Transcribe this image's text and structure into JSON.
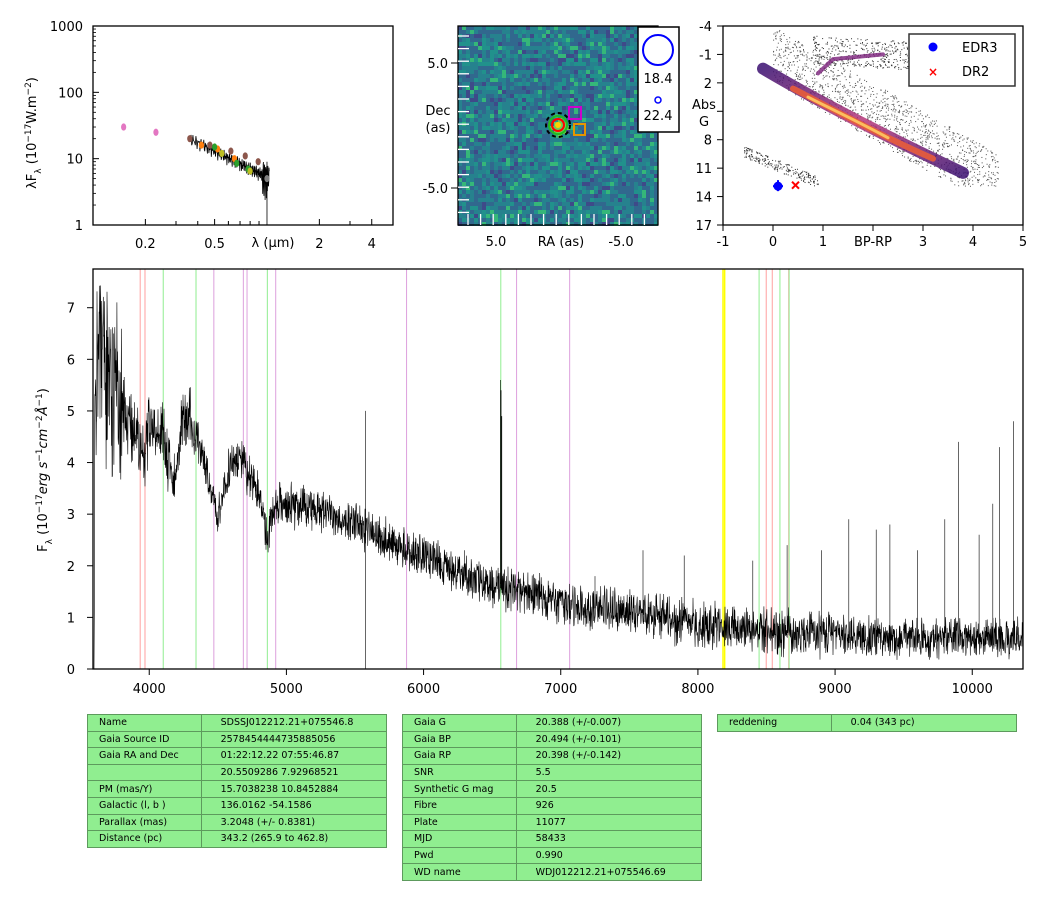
{
  "chart_data": [
    {
      "type": "scatter",
      "panel": "sed",
      "ylabel_html": "λF<sub>λ</sub> (10<sup>−17</sup>W.m<sup>−2</sup>)",
      "ylabel": "λF_λ (10^-17 W.m^-2)",
      "xlabel": "λ (μm)",
      "xscale": "log",
      "yscale": "log",
      "xlim": [
        0.1,
        5.3
      ],
      "ylim": [
        1,
        1000
      ],
      "xtick_labels": [
        "0.2",
        "0.5",
        "2",
        "4"
      ],
      "ytick_labels": [
        "1",
        "10",
        "100",
        "1000"
      ],
      "series": [
        {
          "color": "#e377c2",
          "x": [
            0.15,
            0.23
          ],
          "y": [
            30,
            25
          ]
        },
        {
          "color": "#8c564b",
          "x": [
            0.36,
            0.47,
            0.62,
            0.75,
            0.89
          ],
          "y": [
            20,
            16,
            13,
            11,
            9
          ]
        },
        {
          "color": "#ff7f0e",
          "x": [
            0.42,
            0.52,
            0.65
          ],
          "y": [
            16,
            14,
            10
          ]
        },
        {
          "color": "#2ca02c",
          "x": [
            0.5,
            0.67,
            0.78
          ],
          "y": [
            15,
            8.5,
            7
          ]
        },
        {
          "color": "#bcbd22",
          "x": [
            0.55,
            0.8
          ],
          "y": [
            12,
            6.5
          ]
        },
        {
          "color": "#7f7f7f",
          "x": [
            1.0
          ],
          "y": [
            5
          ]
        }
      ]
    },
    {
      "type": "heatmap",
      "panel": "image",
      "xlabel": "RA (as)",
      "ylabel": "Dec\n(as)",
      "xtick_labels": [
        "5.0",
        "-5.0"
      ],
      "ytick_labels": [
        "5.0",
        "-5.0"
      ],
      "legend_labels": [
        "18.4",
        "22.4"
      ]
    },
    {
      "type": "scatter",
      "panel": "hr",
      "xlabel": "BP-RP",
      "ylabel": "Abs\nG",
      "xlim": [
        -1,
        5
      ],
      "ylim": [
        17,
        -4
      ],
      "xtick_labels": [
        "-1",
        "0",
        "1",
        "2",
        "3",
        "4",
        "5"
      ],
      "ytick_labels": [
        "-4",
        "-1",
        "2",
        "5",
        "8",
        "11",
        "14",
        "17"
      ],
      "series": [
        {
          "name": "EDR3",
          "color": "#0000ff",
          "x": [
            0.1
          ],
          "y": [
            12.9
          ],
          "marker": "circle"
        },
        {
          "name": "DR2",
          "color": "#ff0000",
          "x": [
            0.45
          ],
          "y": [
            12.8
          ],
          "marker": "x"
        }
      ],
      "legend": "top-right"
    },
    {
      "type": "line",
      "panel": "spectrum",
      "ylabel_html": "F<sub>λ</sub> (10<sup>−17</sup><i>erg s</i><sup>−1</sup><i>cm</i><sup>−2</sup><i>Å</i><sup>−1</sup>)",
      "ylabel": "F_λ (10^-17 erg s^-1 cm^-2 Å^-1)",
      "xlim": [
        3590,
        10370
      ],
      "ylim": [
        0,
        7.75
      ],
      "xtick_labels": [
        "4000",
        "5000",
        "6000",
        "7000",
        "8000",
        "9000",
        "10000"
      ],
      "ytick_labels": [
        "0",
        "1",
        "2",
        "3",
        "4",
        "5",
        "6",
        "7"
      ],
      "continuum_x": [
        3600,
        3650,
        3700,
        3800,
        3900,
        3960,
        4000,
        4100,
        4180,
        4250,
        4350,
        4500,
        4600,
        4700,
        4800,
        4860,
        4920,
        5000,
        5100,
        5300,
        5500,
        5700,
        5900,
        6100,
        6300,
        6500,
        6700,
        7000,
        7300,
        7600,
        8000,
        8500,
        9000,
        9500,
        10000,
        10370
      ],
      "continuum_y": [
        6.2,
        6.1,
        5.6,
        5.1,
        4.6,
        4.1,
        4.8,
        4.6,
        3.6,
        5.0,
        4.5,
        3.0,
        4.1,
        3.9,
        3.4,
        2.6,
        3.2,
        3.15,
        3.15,
        3.0,
        2.8,
        2.55,
        2.3,
        2.05,
        1.8,
        1.6,
        1.5,
        1.3,
        1.15,
        1.05,
        0.85,
        0.75,
        0.65,
        0.6,
        0.6,
        0.6
      ],
      "spikes": [
        {
          "x": 5577,
          "y": 5.0
        },
        {
          "x": 5890,
          "y": 2.4
        },
        {
          "x": 6300,
          "y": 2.3
        },
        {
          "x": 6560,
          "y": 5.6
        },
        {
          "x": 6565,
          "y": 5.4
        },
        {
          "x": 6570,
          "y": 4.9
        },
        {
          "x": 7250,
          "y": 1.8
        },
        {
          "x": 7600,
          "y": 2.3
        },
        {
          "x": 7900,
          "y": 2.2
        },
        {
          "x": 8400,
          "y": 2.1
        },
        {
          "x": 8650,
          "y": 2.4
        },
        {
          "x": 8900,
          "y": 2.3
        },
        {
          "x": 9100,
          "y": 2.9
        },
        {
          "x": 9300,
          "y": 2.7
        },
        {
          "x": 9400,
          "y": 2.8
        },
        {
          "x": 9600,
          "y": 2.3
        },
        {
          "x": 9800,
          "y": 2.9
        },
        {
          "x": 9900,
          "y": 4.4
        },
        {
          "x": 10050,
          "y": 2.6
        },
        {
          "x": 10150,
          "y": 3.2
        },
        {
          "x": 10200,
          "y": 4.3
        },
        {
          "x": 10300,
          "y": 4.8
        }
      ],
      "lines": [
        {
          "color": "#ffa0a0",
          "x": 3934
        },
        {
          "color": "#ffa0a0",
          "x": 3969
        },
        {
          "color": "#90ee90",
          "x": 4102
        },
        {
          "color": "#90ee90",
          "x": 4341
        },
        {
          "color": "#dda0dd",
          "x": 4471
        },
        {
          "color": "#dda0dd",
          "x": 4686
        },
        {
          "color": "#dda0dd",
          "x": 4713
        },
        {
          "color": "#90ee90",
          "x": 4861
        },
        {
          "color": "#dda0dd",
          "x": 4922
        },
        {
          "color": "#dda0dd",
          "x": 5876
        },
        {
          "color": "#90ee90",
          "x": 6563
        },
        {
          "color": "#dda0dd",
          "x": 6678
        },
        {
          "color": "#dda0dd",
          "x": 7065
        },
        {
          "color": "#ffff00",
          "x": 8183
        },
        {
          "color": "#ffff00",
          "x": 8195
        },
        {
          "color": "#90ee90",
          "x": 8446
        },
        {
          "color": "#ffa0a0",
          "x": 8498
        },
        {
          "color": "#ffa0a0",
          "x": 8542
        },
        {
          "color": "#90ee90",
          "x": 8598
        },
        {
          "color": "#ffa0a0",
          "x": 8662
        },
        {
          "color": "#90ee90",
          "x": 8665
        }
      ]
    }
  ],
  "tables": {
    "astrometry": [
      [
        "Name",
        "SDSSJ012212.21+075546.8"
      ],
      [
        "Gaia Source ID",
        "2578454444735885056"
      ],
      [
        "Gaia RA and Dec",
        "01:22:12.22     07:55:46.87"
      ],
      [
        "",
        "20.5509286    7.92968521"
      ],
      [
        "PM (mas/Y)",
        "15.7038238    10.8452884"
      ],
      [
        "Galactic (l, b )",
        "136.0162     -54.1586"
      ],
      [
        "Parallax (mas)",
        "3.2048 (+/- 0.8381)"
      ],
      [
        "Distance (pc)",
        "343.2 (265.9 to 462.8)"
      ]
    ],
    "photometry": [
      [
        "Gaia G",
        "20.388 (+/-0.007)"
      ],
      [
        "Gaia BP",
        "20.494 (+/-0.101)"
      ],
      [
        "Gaia RP",
        "20.398 (+/-0.142)"
      ],
      [
        "SNR",
        "5.5"
      ],
      [
        "Synthetic G mag",
        "20.5"
      ],
      [
        "Fibre",
        "926"
      ],
      [
        "Plate",
        "11077"
      ],
      [
        "MJD",
        "58433"
      ],
      [
        "Pwd",
        "0.990"
      ],
      [
        "WD name",
        "WDJ012212.21+075546.69"
      ]
    ],
    "extinction": [
      [
        "reddening",
        "0.04 (343 pc)"
      ]
    ]
  }
}
